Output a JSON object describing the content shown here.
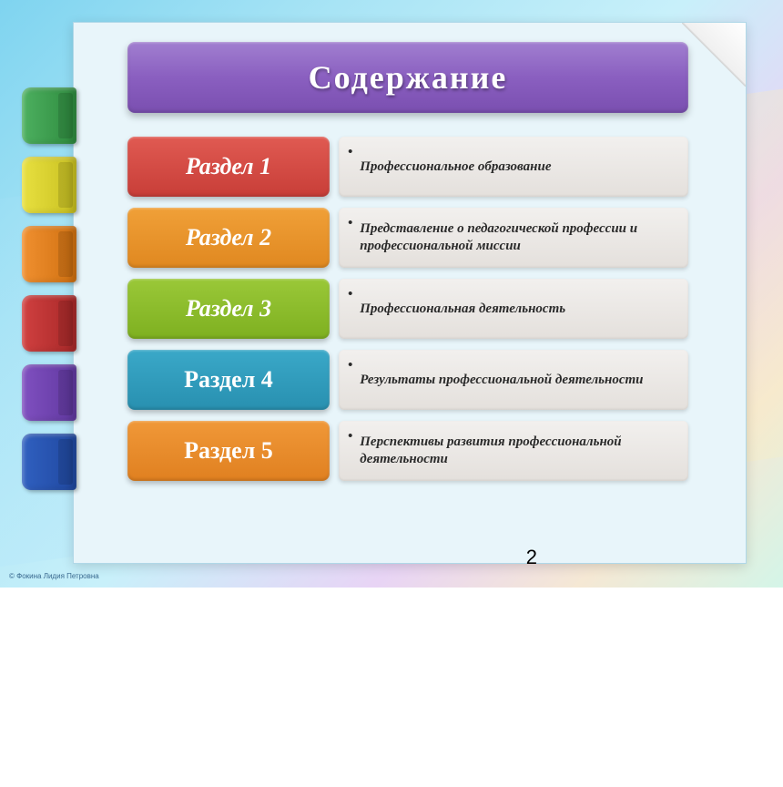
{
  "slide": {
    "background_gradient": [
      "#7fd4f0",
      "#a8e4f5",
      "#c8f0fa",
      "#e8d4f5",
      "#f5e8d4",
      "#d4f5e8"
    ],
    "paper_bg": "#e8f5fa",
    "paper_border": "#b0d8e8"
  },
  "header": {
    "title": "Содержание",
    "bg_gradient": [
      "#a17fd0",
      "#8a5fc0",
      "#7a4fb0"
    ],
    "text_color": "#ffffff",
    "font_size_pt": 27
  },
  "side_tabs": [
    {
      "gradient": [
        "#4db060",
        "#2e8b3e"
      ]
    },
    {
      "gradient": [
        "#e8e040",
        "#c8c020"
      ]
    },
    {
      "gradient": [
        "#f09030",
        "#d07010"
      ]
    },
    {
      "gradient": [
        "#d04040",
        "#a82828"
      ]
    },
    {
      "gradient": [
        "#8050c0",
        "#6038a0"
      ]
    },
    {
      "gradient": [
        "#3060c0",
        "#2048a0"
      ]
    }
  ],
  "sections": [
    {
      "label": "Раздел 1",
      "label_italic": true,
      "label_gradient": [
        "#e05a52",
        "#c83e38"
      ],
      "desc": "Профессиональное образование"
    },
    {
      "label": "Раздел 2",
      "label_italic": true,
      "label_gradient": [
        "#f0a038",
        "#e08820"
      ],
      "desc": "Представление о педагогической профессии и профессиональной миссии"
    },
    {
      "label": "Раздел 3",
      "label_italic": true,
      "label_gradient": [
        "#9ac838",
        "#7eb020"
      ],
      "desc": "Профессиональная деятельность"
    },
    {
      "label": "Раздел 4",
      "label_italic": false,
      "label_gradient": [
        "#3aa8c8",
        "#2890b0"
      ],
      "desc": "Результаты профессиональной деятельности"
    },
    {
      "label": "Раздел 5",
      "label_italic": false,
      "label_gradient": [
        "#f09838",
        "#e08020"
      ],
      "desc": "Перспективы развития профессиональной деятельности"
    }
  ],
  "desc_style": {
    "bg_gradient": [
      "#f2f0ee",
      "#e4e0dc"
    ],
    "font_size_pt": 11,
    "text_color": "#2a2a2a",
    "bullet": "•"
  },
  "page_number": "2",
  "copyright": "© Фокина Лидия Петровна"
}
